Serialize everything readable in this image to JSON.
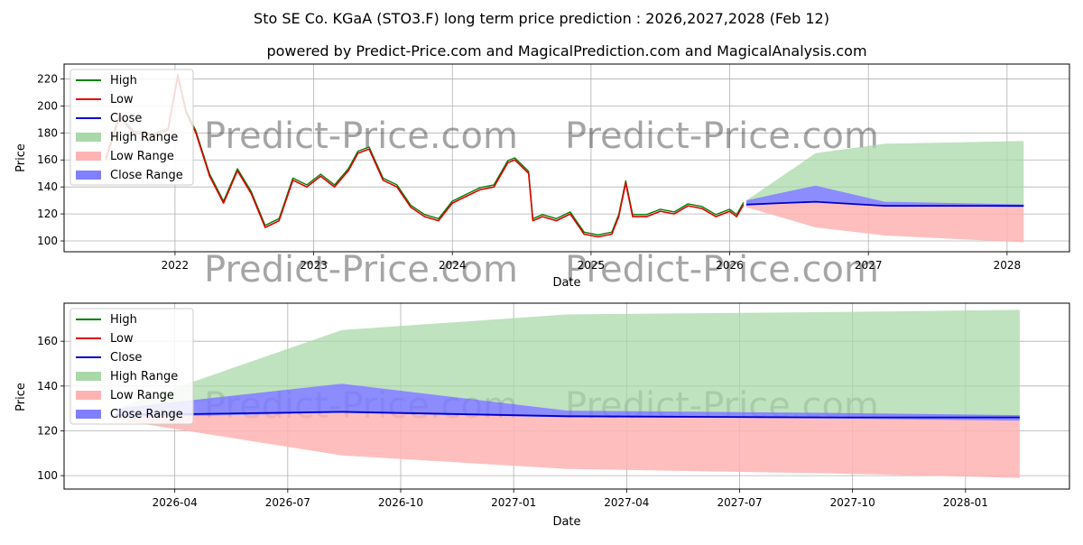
{
  "title": "Sto SE Co. KGaA (STO3.F) long term price prediction : 2026,2027,2028 (Feb 12)",
  "subtitle": "powered by Predict-Price.com and MagicalPrediction.com and MagicalAnalysis.com",
  "watermark": "Predict-Price.com",
  "colors": {
    "high": "#008000",
    "low": "#e00000",
    "close": "#0000cc",
    "high_range": "#a9d8a9",
    "low_range": "#ffb3b3",
    "close_range": "#7f7fff"
  },
  "chart_data": [
    {
      "type": "line",
      "id": "overview",
      "xlabel": "Date",
      "ylabel": "Price",
      "xlim": [
        2021.2,
        2028.45
      ],
      "ylim": [
        92,
        231
      ],
      "x_ticks": [
        2022,
        2023,
        2024,
        2025,
        2026,
        2027,
        2028
      ],
      "x_tick_labels": [
        "2022",
        "2023",
        "2024",
        "2025",
        "2026",
        "2027",
        "2028"
      ],
      "y_ticks": [
        100,
        120,
        140,
        160,
        180,
        200,
        220
      ],
      "legend": [
        "High",
        "Low",
        "Close",
        "High Range",
        "Low Range",
        "Close Range"
      ],
      "legend_position": "upper-left",
      "history_x": [
        2021.5,
        2021.6,
        2021.7,
        2021.85,
        2021.95,
        2022.02,
        2022.08,
        2022.15,
        2022.25,
        2022.35,
        2022.45,
        2022.55,
        2022.65,
        2022.75,
        2022.85,
        2022.95,
        2023.05,
        2023.15,
        2023.25,
        2023.32,
        2023.4,
        2023.5,
        2023.6,
        2023.7,
        2023.8,
        2023.9,
        2024.0,
        2024.1,
        2024.2,
        2024.3,
        2024.4,
        2024.45,
        2024.5,
        2024.55,
        2024.58,
        2024.65,
        2024.75,
        2024.85,
        2024.95,
        2025.05,
        2025.15,
        2025.2,
        2025.25,
        2025.3,
        2025.4,
        2025.5,
        2025.6,
        2025.7,
        2025.8,
        2025.9,
        2026.0,
        2026.05,
        2026.1
      ],
      "history_close": [
        160,
        192,
        180,
        178,
        182,
        222,
        195,
        180,
        148,
        128,
        152,
        135,
        110,
        115,
        145,
        140,
        148,
        140,
        152,
        165,
        168,
        145,
        140,
        125,
        118,
        115,
        128,
        133,
        138,
        140,
        158,
        160,
        155,
        150,
        115,
        118,
        115,
        120,
        105,
        103,
        105,
        118,
        143,
        118,
        118,
        122,
        120,
        126,
        124,
        118,
        122,
        118,
        127
      ],
      "forecast_x": [
        2026.12,
        2026.62,
        2027.12,
        2028.12
      ],
      "forecast_close": [
        127,
        129,
        126,
        126
      ],
      "high_range_upper": [
        130,
        165,
        172,
        174
      ],
      "high_range_lower": [
        128,
        141,
        129,
        126
      ],
      "close_range_upper": [
        130,
        141,
        129,
        127
      ],
      "close_range_lower": [
        126,
        129,
        126,
        125
      ],
      "low_range_upper": [
        126,
        129,
        126,
        125
      ],
      "low_range_lower": [
        125,
        110,
        104,
        99
      ]
    },
    {
      "type": "line",
      "id": "zoom",
      "xlabel": "Date",
      "ylabel": "Price",
      "xlim": [
        2026.005,
        2028.23
      ],
      "ylim": [
        94,
        177
      ],
      "x_ticks": [
        2026.25,
        2026.5,
        2026.75,
        2027.0,
        2027.25,
        2027.5,
        2027.75,
        2028.0
      ],
      "x_tick_labels": [
        "2026-04",
        "2026-07",
        "2026-10",
        "2027-01",
        "2027-04",
        "2027-07",
        "2027-10",
        "2028-01"
      ],
      "y_ticks": [
        100,
        120,
        140,
        160
      ],
      "legend": [
        "High",
        "Low",
        "Close",
        "High Range",
        "Low Range",
        "Close Range"
      ],
      "legend_position": "upper-left",
      "x": [
        2026.12,
        2026.62,
        2027.12,
        2027.7,
        2028.12
      ],
      "close": [
        127,
        128.5,
        126.5,
        126,
        126
      ],
      "high_range_upper": [
        130,
        165,
        172,
        173,
        174
      ],
      "high_range_lower": [
        128,
        141,
        129,
        127,
        126
      ],
      "close_range_upper": [
        130,
        141,
        129,
        128,
        127
      ],
      "close_range_lower": [
        126,
        128,
        126,
        125.5,
        124.5
      ],
      "low_range_upper": [
        126,
        128,
        126,
        125.5,
        124.5
      ],
      "low_range_lower": [
        125,
        109,
        103,
        101,
        99
      ]
    }
  ]
}
